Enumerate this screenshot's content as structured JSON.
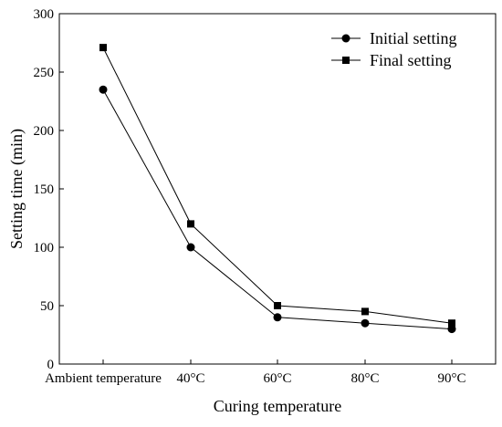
{
  "chart_data": {
    "type": "line",
    "title": "",
    "xlabel": "Curing temperature",
    "ylabel": "Setting time (min)",
    "categories": [
      "Ambient temperature",
      "40°C",
      "60°C",
      "80°C",
      "90°C"
    ],
    "ylim": [
      0,
      300
    ],
    "yticks": [
      0,
      50,
      100,
      150,
      200,
      250,
      300
    ],
    "grid": false,
    "legend": "top-right",
    "series": [
      {
        "name": "Initial setting",
        "marker": "circle",
        "color": "#000000",
        "values": [
          235,
          100,
          40,
          35,
          30
        ]
      },
      {
        "name": "Final setting",
        "marker": "square",
        "color": "#000000",
        "values": [
          271,
          120,
          50,
          45,
          35
        ]
      }
    ]
  }
}
